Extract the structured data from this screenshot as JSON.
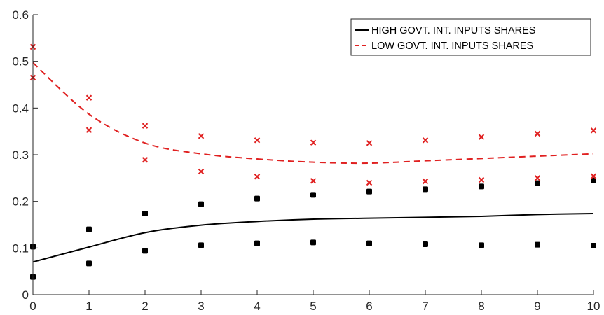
{
  "chart_data": {
    "type": "line",
    "title": "",
    "xlabel": "",
    "ylabel": "",
    "xlim": [
      0,
      10
    ],
    "ylim": [
      0,
      0.6
    ],
    "x_ticks": [
      "0",
      "1",
      "2",
      "3",
      "4",
      "5",
      "6",
      "7",
      "8",
      "9",
      "10"
    ],
    "y_ticks": [
      "0",
      "0.1",
      "0.2",
      "0.3",
      "0.4",
      "0.5",
      "0.6"
    ],
    "grid": false,
    "legend_position": "top-right",
    "x": [
      0,
      1,
      2,
      3,
      4,
      5,
      6,
      7,
      8,
      9,
      10
    ],
    "series": [
      {
        "name": "HIGH GOVT. INT. INPUTS SHARES",
        "color": "#000000",
        "line_style": "solid",
        "values": [
          0.07,
          0.102,
          0.133,
          0.149,
          0.157,
          0.162,
          0.164,
          0.166,
          0.168,
          0.172,
          0.174
        ],
        "band_marker": "square",
        "upper": [
          0.103,
          0.14,
          0.174,
          0.194,
          0.206,
          0.214,
          0.221,
          0.226,
          0.232,
          0.239,
          0.245
        ],
        "lower": [
          0.038,
          0.067,
          0.094,
          0.106,
          0.11,
          0.112,
          0.11,
          0.108,
          0.106,
          0.107,
          0.105
        ]
      },
      {
        "name": "LOW GOVT. INT. INPUTS SHARES",
        "color": "#e02020",
        "line_style": "dashed",
        "values": [
          0.497,
          0.387,
          0.325,
          0.302,
          0.291,
          0.284,
          0.282,
          0.287,
          0.292,
          0.297,
          0.302
        ],
        "band_marker": "x",
        "upper": [
          0.531,
          0.422,
          0.362,
          0.34,
          0.331,
          0.326,
          0.325,
          0.331,
          0.338,
          0.345,
          0.352
        ],
        "lower": [
          0.465,
          0.353,
          0.289,
          0.264,
          0.253,
          0.244,
          0.24,
          0.243,
          0.246,
          0.25,
          0.254
        ]
      }
    ]
  }
}
